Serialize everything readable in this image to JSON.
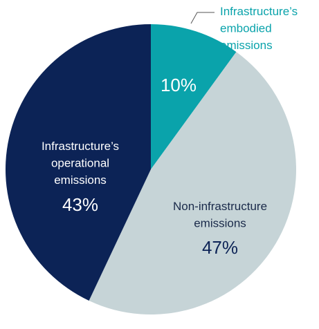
{
  "chart_data": {
    "type": "pie",
    "categories": [
      "Infrastructure’s embodied emissions",
      "Non-infrastructure emissions",
      "Infrastructure’s operational emissions"
    ],
    "values": [
      10,
      47,
      43
    ],
    "value_labels": [
      "10%",
      "47%",
      "43%"
    ],
    "colors": [
      "#0aa3ab",
      "#c6d4d7",
      "#0c2356"
    ]
  }
}
